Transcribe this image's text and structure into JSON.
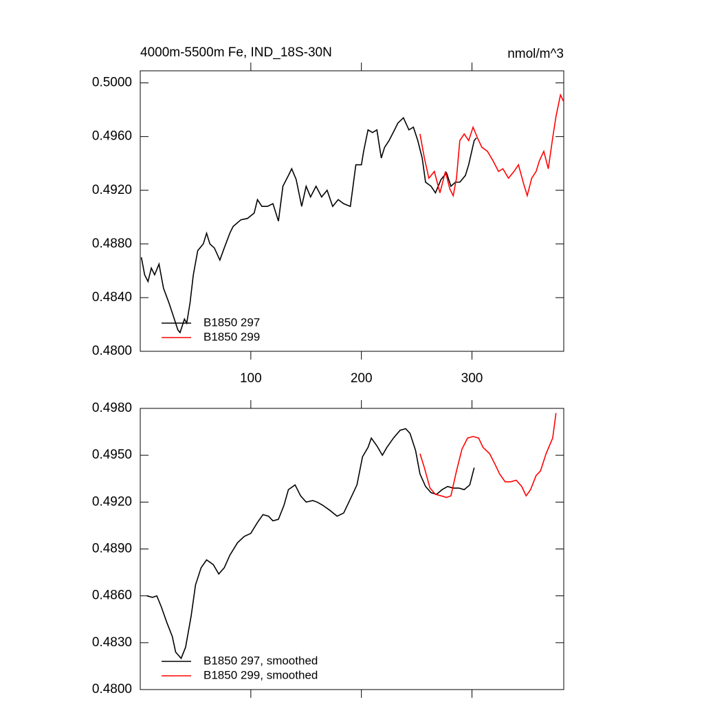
{
  "chart_data": [
    {
      "type": "line",
      "title": "4000m-5500m Fe, IND_18S-30N",
      "units": "nmol/m^3",
      "xlim": [
        0,
        383
      ],
      "ylim": [
        0.48,
        0.5009
      ],
      "xticks": [
        100,
        200,
        300
      ],
      "yticks": [
        {
          "value": 0.48,
          "label": "0.4800"
        },
        {
          "value": 0.484,
          "label": "0.4840"
        },
        {
          "value": 0.488,
          "label": "0.4880"
        },
        {
          "value": 0.492,
          "label": "0.4920"
        },
        {
          "value": 0.496,
          "label": "0.4960"
        },
        {
          "value": 0.5,
          "label": "0.5000"
        }
      ],
      "series": [
        {
          "name": "B1850 297",
          "color": "#000000",
          "x": [
            1,
            4,
            7,
            10,
            13,
            17,
            21,
            26,
            30,
            34,
            36,
            40,
            42,
            45,
            48,
            52,
            57,
            60,
            63,
            67,
            72,
            76,
            81,
            84,
            91,
            97,
            103,
            106,
            110,
            115,
            120,
            125,
            129,
            134,
            137,
            141,
            146,
            150,
            154,
            159,
            164,
            169,
            174,
            179,
            184,
            190,
            195,
            200,
            202,
            206,
            210,
            214,
            218,
            221,
            225,
            230,
            233,
            238,
            243,
            247,
            251,
            255,
            258,
            263,
            267,
            272,
            277,
            281,
            285,
            289,
            294,
            297,
            302,
            304
          ],
          "values": [
            0.487,
            0.4857,
            0.4852,
            0.4862,
            0.4857,
            0.4865,
            0.4847,
            0.4836,
            0.4826,
            0.4816,
            0.4814,
            0.4824,
            0.4821,
            0.4836,
            0.4857,
            0.4875,
            0.488,
            0.4888,
            0.488,
            0.4877,
            0.4868,
            0.4877,
            0.4888,
            0.4893,
            0.4898,
            0.4899,
            0.4903,
            0.4913,
            0.4908,
            0.4908,
            0.491,
            0.4897,
            0.4923,
            0.4931,
            0.4936,
            0.4928,
            0.4908,
            0.4923,
            0.4915,
            0.4923,
            0.4915,
            0.492,
            0.4908,
            0.4913,
            0.491,
            0.4908,
            0.4939,
            0.4939,
            0.4949,
            0.4965,
            0.4963,
            0.4965,
            0.4944,
            0.4952,
            0.4957,
            0.4965,
            0.497,
            0.4974,
            0.4965,
            0.4967,
            0.4957,
            0.4944,
            0.4926,
            0.4923,
            0.4918,
            0.4928,
            0.4933,
            0.4923,
            0.4926,
            0.4926,
            0.4931,
            0.4939,
            0.4957,
            0.4959
          ]
        },
        {
          "name": "B1850 299",
          "color": "#ff0000",
          "x": [
            253,
            257,
            261,
            266,
            271,
            276,
            280,
            283,
            286,
            289,
            293,
            297,
            301,
            305,
            309,
            314,
            319,
            324,
            328,
            333,
            338,
            342,
            347,
            350,
            354,
            358,
            361,
            365,
            369,
            373,
            376,
            380,
            383
          ],
          "values": [
            0.4962,
            0.4944,
            0.4929,
            0.4934,
            0.4918,
            0.4934,
            0.4921,
            0.4916,
            0.4929,
            0.4957,
            0.4962,
            0.4957,
            0.4967,
            0.4959,
            0.4952,
            0.4949,
            0.4942,
            0.4934,
            0.4936,
            0.4929,
            0.4934,
            0.4939,
            0.4924,
            0.4916,
            0.4929,
            0.4934,
            0.4942,
            0.4949,
            0.4936,
            0.4959,
            0.4975,
            0.4991,
            0.4986
          ]
        }
      ]
    },
    {
      "type": "line",
      "xlim": [
        0,
        383
      ],
      "ylim": [
        0.48,
        0.498
      ],
      "yticks": [
        {
          "value": 0.48,
          "label": "0.4800"
        },
        {
          "value": 0.483,
          "label": "0.4830"
        },
        {
          "value": 0.486,
          "label": "0.4860"
        },
        {
          "value": 0.489,
          "label": "0.4890"
        },
        {
          "value": 0.492,
          "label": "0.4920"
        },
        {
          "value": 0.495,
          "label": "0.4950"
        },
        {
          "value": 0.498,
          "label": "0.4980"
        }
      ],
      "series": [
        {
          "name": "B1850 297, smoothed",
          "color": "#000000",
          "x": [
            6,
            11,
            15,
            19,
            24,
            29,
            32,
            37,
            41,
            46,
            50,
            55,
            60,
            66,
            71,
            76,
            81,
            88,
            94,
            100,
            106,
            111,
            116,
            120,
            125,
            130,
            134,
            140,
            145,
            150,
            156,
            160,
            165,
            171,
            178,
            184,
            190,
            196,
            201,
            206,
            209,
            214,
            219,
            223,
            229,
            235,
            240,
            244,
            249,
            253,
            258,
            263,
            268,
            273,
            278,
            283,
            288,
            293,
            298,
            302
          ],
          "values": [
            0.486,
            0.4859,
            0.486,
            0.4853,
            0.4843,
            0.4834,
            0.4824,
            0.482,
            0.4827,
            0.4847,
            0.4867,
            0.4878,
            0.4883,
            0.488,
            0.4874,
            0.4878,
            0.4886,
            0.4894,
            0.4898,
            0.49,
            0.4907,
            0.4912,
            0.4911,
            0.4908,
            0.4909,
            0.4918,
            0.4928,
            0.4931,
            0.4924,
            0.492,
            0.4921,
            0.492,
            0.4918,
            0.4915,
            0.4911,
            0.4913,
            0.4922,
            0.4931,
            0.4949,
            0.4955,
            0.4961,
            0.4956,
            0.495,
            0.4955,
            0.4961,
            0.4966,
            0.4967,
            0.4964,
            0.4953,
            0.4938,
            0.493,
            0.4926,
            0.4925,
            0.4928,
            0.493,
            0.4929,
            0.4929,
            0.4928,
            0.4931,
            0.4942
          ]
        },
        {
          "name": "B1850 299, smoothed",
          "color": "#ff0000",
          "x": [
            253,
            257,
            262,
            267,
            272,
            277,
            281,
            286,
            291,
            296,
            301,
            306,
            310,
            316,
            321,
            325,
            330,
            335,
            340,
            345,
            349,
            353,
            358,
            362,
            367,
            373,
            376
          ],
          "values": [
            0.4951,
            0.4942,
            0.4929,
            0.4925,
            0.4924,
            0.4923,
            0.4924,
            0.494,
            0.4954,
            0.4961,
            0.4962,
            0.4961,
            0.4955,
            0.4951,
            0.4944,
            0.4938,
            0.4933,
            0.4933,
            0.4934,
            0.493,
            0.4924,
            0.4928,
            0.4937,
            0.494,
            0.4951,
            0.4961,
            0.4977
          ]
        }
      ]
    }
  ]
}
